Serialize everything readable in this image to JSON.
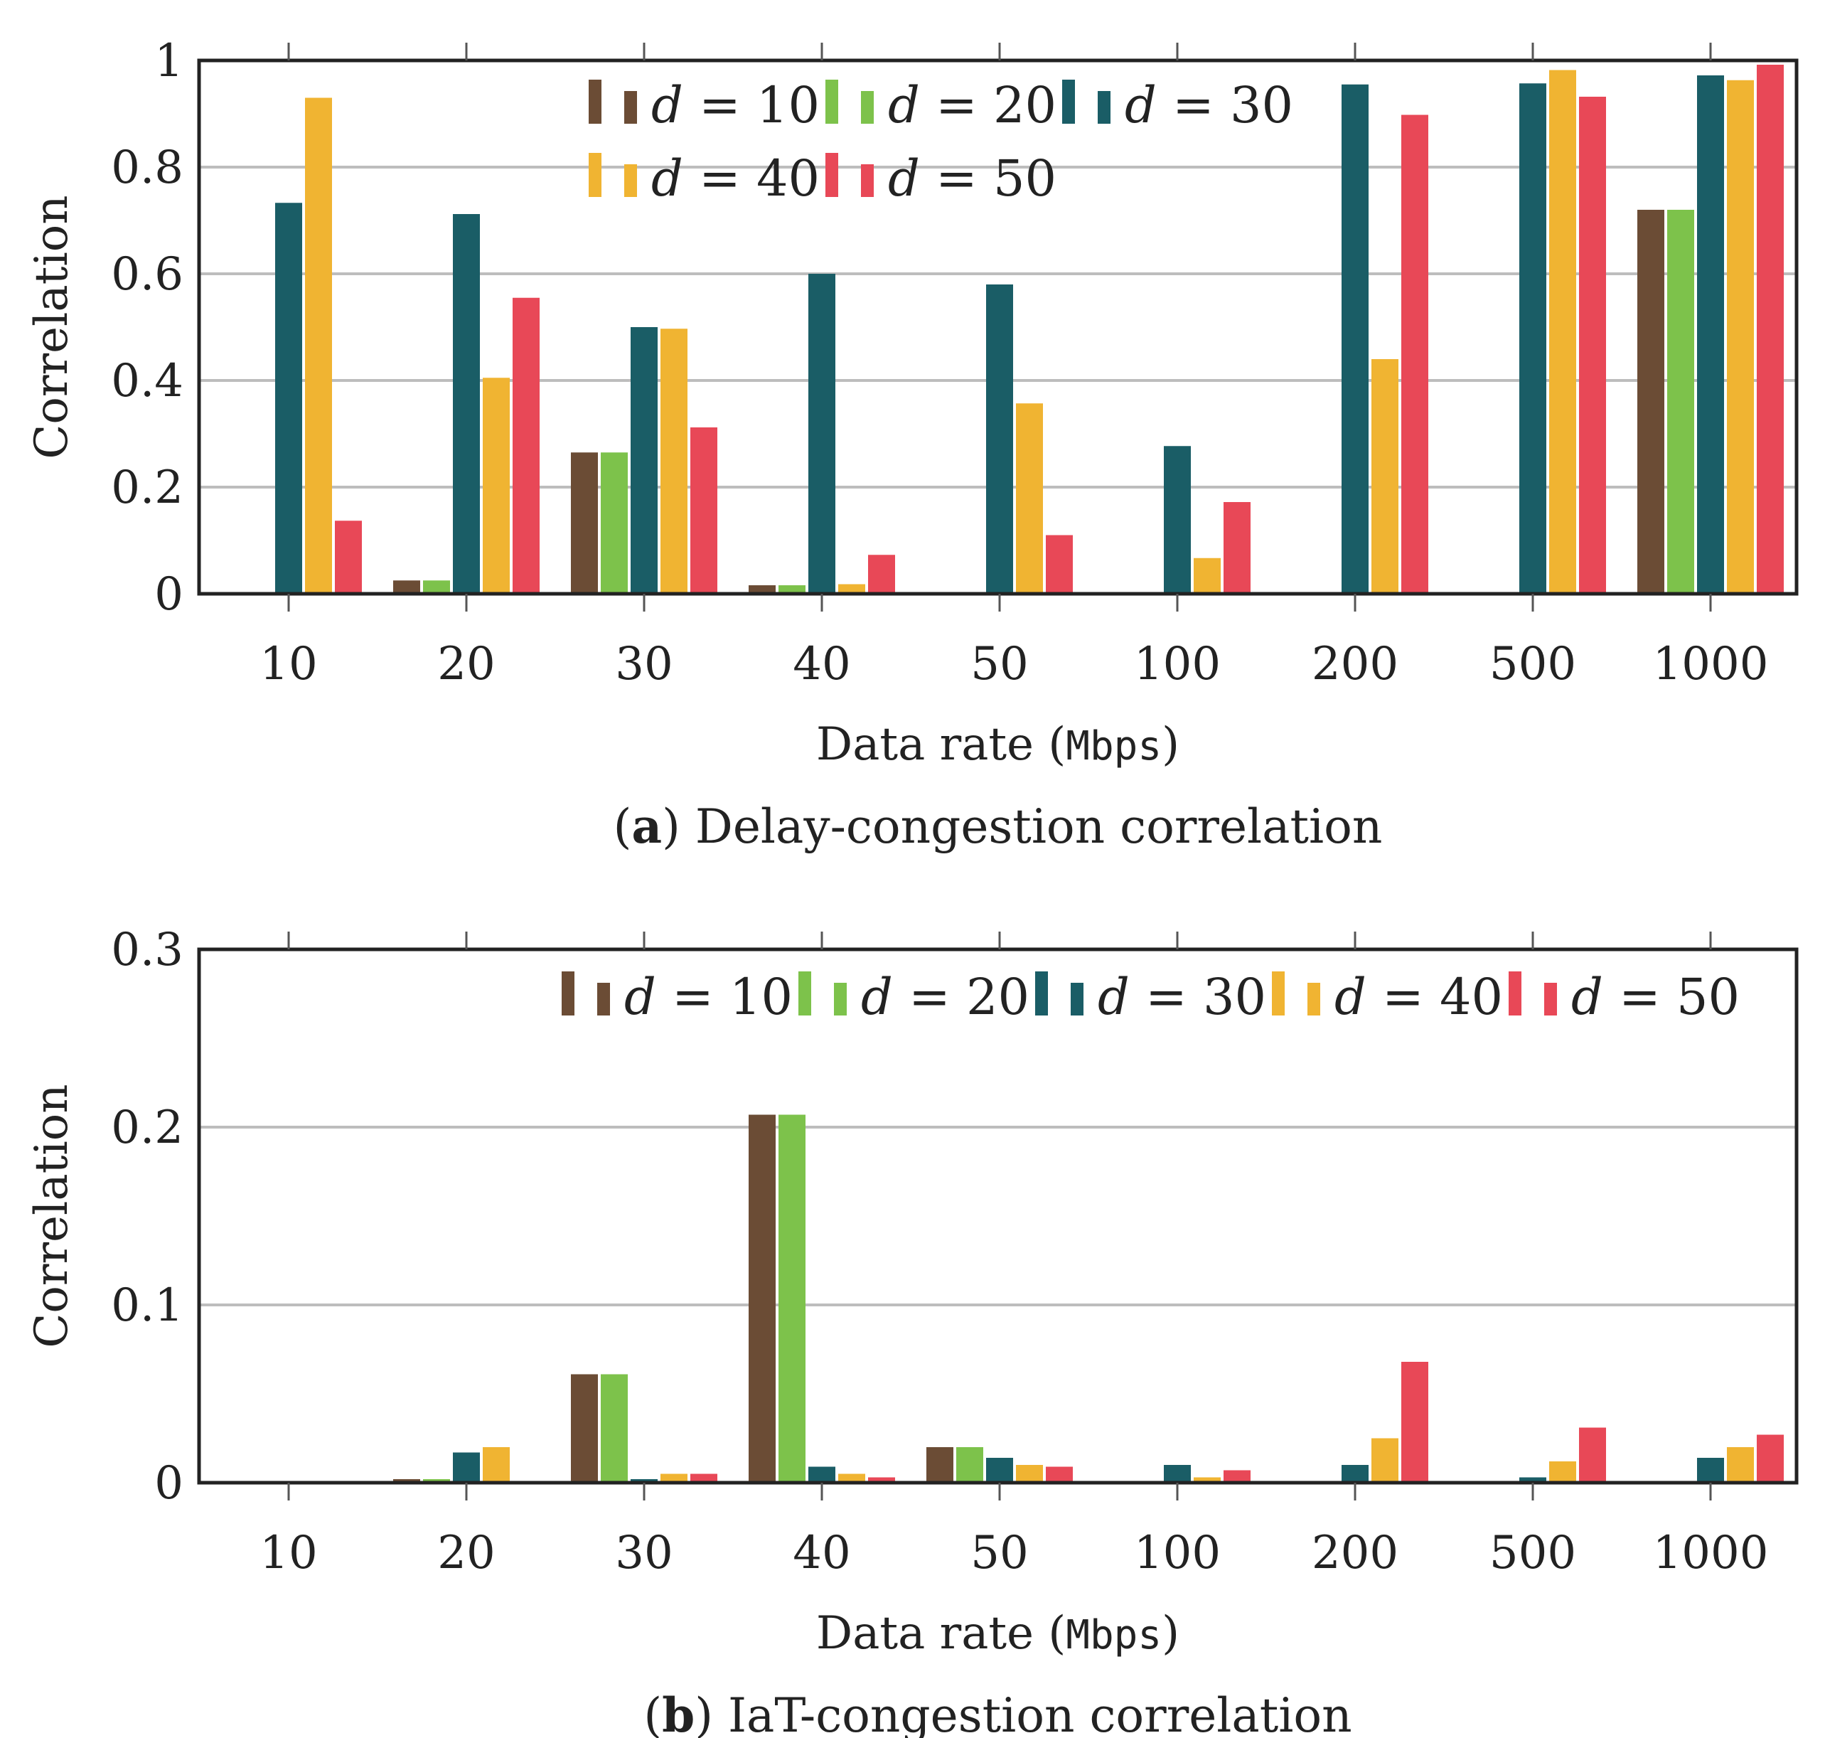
{
  "colors": {
    "d10": "#6B4C35",
    "d20": "#7DC24B",
    "d30": "#1A5D66",
    "d40": "#F0B432",
    "d50": "#E84857"
  },
  "chart_data": [
    {
      "type": "bar",
      "id": "a",
      "title": "Delay-congestion correlation",
      "caption_letter": "a",
      "caption_open": "(",
      "caption_close": ") Delay-congestion correlation",
      "xlabel_prefix": "Data rate (",
      "xlabel_unit": "Mbps",
      "xlabel_suffix": ")",
      "ylabel": "Correlation",
      "ylim": [
        0,
        1
      ],
      "yticks": [
        0,
        0.2,
        0.4,
        0.6,
        0.8,
        1
      ],
      "ytick_labels": [
        "0",
        "0.2",
        "0.4",
        "0.6",
        "0.8",
        "1"
      ],
      "grid": true,
      "legend_position": "top-center",
      "legend_rows": 2,
      "categories": [
        "10",
        "20",
        "30",
        "40",
        "50",
        "100",
        "200",
        "500",
        "1000"
      ],
      "series": [
        {
          "name": "d = 10",
          "var": "d",
          "eq": " = 10",
          "color_key": "d10",
          "values": [
            0,
            0.025,
            0.265,
            0.016,
            0,
            0,
            0,
            0,
            0.72
          ]
        },
        {
          "name": "d = 20",
          "var": "d",
          "eq": " = 20",
          "color_key": "d20",
          "values": [
            0,
            0.025,
            0.265,
            0.016,
            0,
            0,
            0,
            0,
            0.72
          ]
        },
        {
          "name": "d = 30",
          "var": "d",
          "eq": " = 30",
          "color_key": "d30",
          "values": [
            0.733,
            0.712,
            0.5,
            0.6,
            0.58,
            0.277,
            0.955,
            0.957,
            0.972
          ]
        },
        {
          "name": "d = 40",
          "var": "d",
          "eq": " = 40",
          "color_key": "d40",
          "values": [
            0.93,
            0.405,
            0.497,
            0.018,
            0.357,
            0.067,
            0.44,
            0.982,
            0.963
          ]
        },
        {
          "name": "d = 50",
          "var": "d",
          "eq": " = 50",
          "color_key": "d50",
          "values": [
            0.137,
            0.555,
            0.312,
            0.073,
            0.11,
            0.172,
            0.898,
            0.932,
            0.992
          ]
        }
      ]
    },
    {
      "type": "bar",
      "id": "b",
      "title": "IaT-congestion correlation",
      "caption_letter": "b",
      "caption_open": "(",
      "caption_close": ") IaT-congestion correlation",
      "xlabel_prefix": "Data rate (",
      "xlabel_unit": "Mbps",
      "xlabel_suffix": ")",
      "ylabel": "Correlation",
      "ylim": [
        0,
        0.3
      ],
      "yticks": [
        0,
        0.1,
        0.2,
        0.3
      ],
      "ytick_labels": [
        "0",
        "0.1",
        "0.2",
        "0.3"
      ],
      "grid": true,
      "legend_position": "top-right",
      "legend_rows": 1,
      "categories": [
        "10",
        "20",
        "30",
        "40",
        "50",
        "100",
        "200",
        "500",
        "1000"
      ],
      "series": [
        {
          "name": "d = 10",
          "var": "d",
          "eq": " = 10",
          "color_key": "d10",
          "values": [
            0,
            0.002,
            0.061,
            0.207,
            0.02,
            0,
            0,
            0,
            0
          ]
        },
        {
          "name": "d = 20",
          "var": "d",
          "eq": " = 20",
          "color_key": "d20",
          "values": [
            0,
            0.002,
            0.061,
            0.207,
            0.02,
            0,
            0,
            0,
            0
          ]
        },
        {
          "name": "d = 30",
          "var": "d",
          "eq": " = 30",
          "color_key": "d30",
          "values": [
            0,
            0.017,
            0.002,
            0.009,
            0.014,
            0.01,
            0.01,
            0.003,
            0.014
          ]
        },
        {
          "name": "d = 40",
          "var": "d",
          "eq": " = 40",
          "color_key": "d40",
          "values": [
            0,
            0.02,
            0.005,
            0.005,
            0.01,
            0.003,
            0.025,
            0.012,
            0.02
          ]
        },
        {
          "name": "d = 50",
          "var": "d",
          "eq": " = 50",
          "color_key": "d50",
          "values": [
            0,
            0,
            0.005,
            0.003,
            0.009,
            0.007,
            0.068,
            0.031,
            0.027
          ]
        }
      ]
    }
  ]
}
